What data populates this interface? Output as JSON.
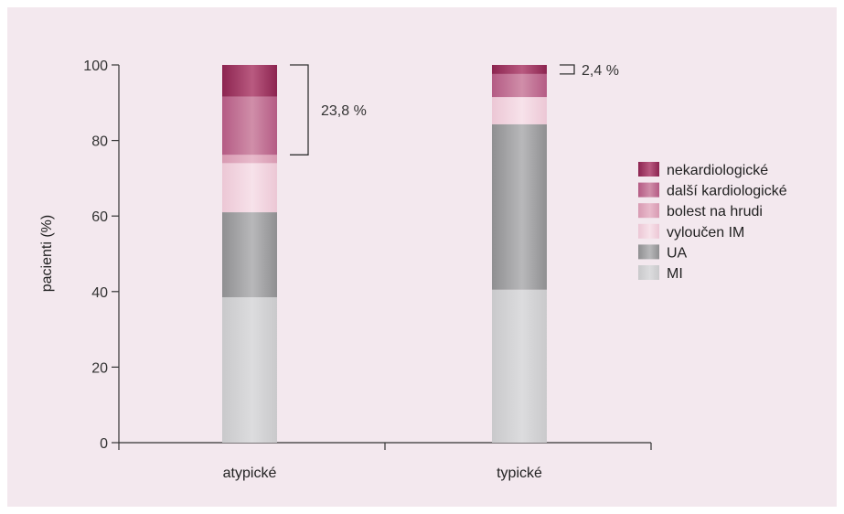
{
  "chart_data": {
    "type": "bar",
    "stacked": true,
    "ylabel": "pacienti (%)",
    "ylim": [
      0,
      100
    ],
    "yticks": [
      0,
      20,
      40,
      60,
      80,
      100
    ],
    "categories": [
      "atypické",
      "typické"
    ],
    "series": [
      {
        "name": "MI",
        "values": [
          38.5,
          40.5
        ],
        "colors": [
          "#c9c9cb",
          "#dcdcde",
          "#c9c9cb"
        ]
      },
      {
        "name": "UA",
        "values": [
          22.5,
          43.8
        ],
        "colors": [
          "#8f8f91",
          "#b8b8ba",
          "#8f8f91"
        ]
      },
      {
        "name": "vyloučen IM",
        "values": [
          13.0,
          7.2
        ],
        "colors": [
          "#ecc7d5",
          "#f7e2ea",
          "#ecc7d5"
        ]
      },
      {
        "name": "bolest na hrudi",
        "values": [
          2.2,
          0.0
        ],
        "colors": [
          "#d89ab2",
          "#e8bacb",
          "#d89ab2"
        ]
      },
      {
        "name": "další kardiologické",
        "values": [
          15.4,
          6.1
        ],
        "colors": [
          "#b45b84",
          "#d08ea9",
          "#b45b84"
        ]
      },
      {
        "name": "nekardiologické",
        "values": [
          8.4,
          2.4
        ],
        "colors": [
          "#8c2450",
          "#b95a80",
          "#8c2450"
        ]
      }
    ],
    "annotations": [
      {
        "category": "atypické",
        "text": "23,8 %",
        "from": 76.2,
        "to": 100
      },
      {
        "category": "typické",
        "text": "2,4 %",
        "from": 97.6,
        "to": 100
      }
    ],
    "legend_position": "right"
  }
}
